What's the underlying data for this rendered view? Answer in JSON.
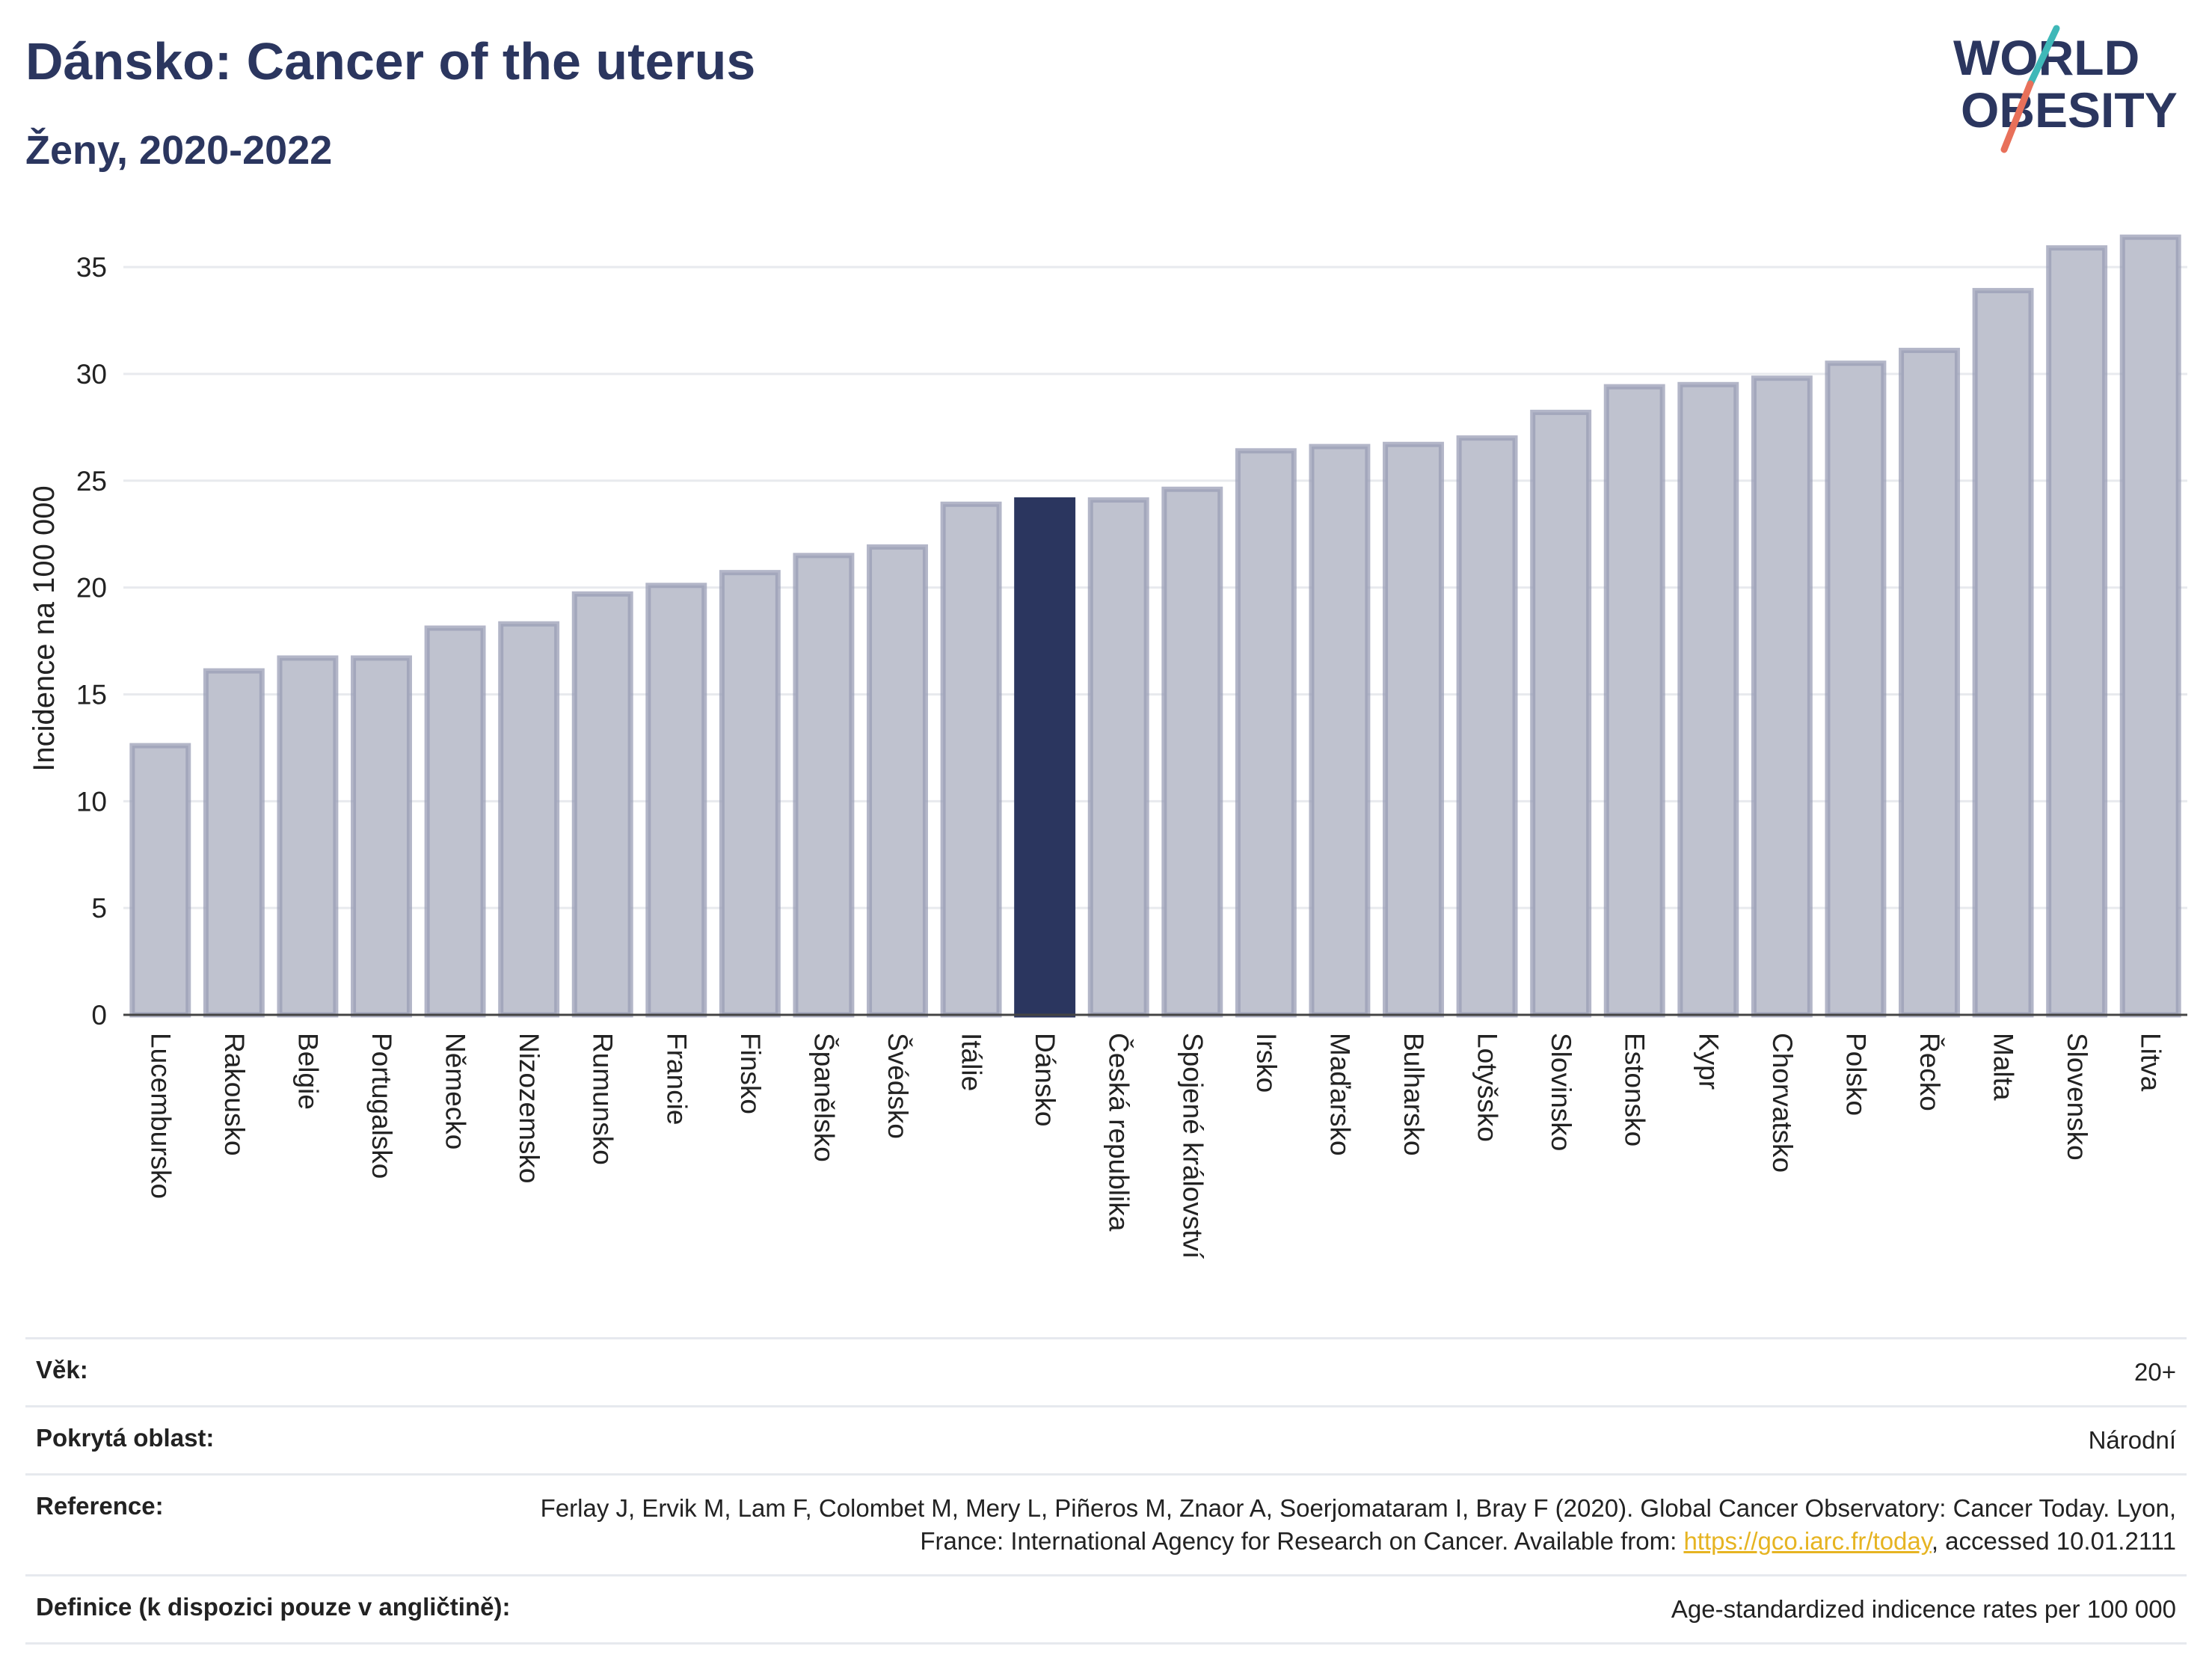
{
  "header": {
    "title": "Dánsko: Cancer of the uterus",
    "subtitle": "Ženy, 2020-2022"
  },
  "logo": {
    "line1": "WORLD",
    "line2": "OBESITY",
    "colors": {
      "text": "#2b365f",
      "slash_teal": "#3fb8b8",
      "slash_red": "#e8705a"
    }
  },
  "chart_data": {
    "type": "bar",
    "ylabel": "Incidence na 100 000",
    "ylim": [
      0,
      37
    ],
    "yticks": [
      0,
      5,
      10,
      15,
      20,
      25,
      30,
      35
    ],
    "grid": true,
    "highlight": "Dánsko",
    "colors": {
      "bar": "#bfc2cf",
      "bar_border": "#9a9db5",
      "highlight": "#2b365f"
    },
    "categories": [
      "Lucembursko",
      "Rakousko",
      "Belgie",
      "Portugalsko",
      "Německo",
      "Nizozemsko",
      "Rumunsko",
      "Francie",
      "Finsko",
      "Španělsko",
      "Švédsko",
      "Itálie",
      "Dánsko",
      "Česká republika",
      "Spojené království",
      "Irsko",
      "Maďarsko",
      "Bulharsko",
      "Lotyšsko",
      "Slovinsko",
      "Estonsko",
      "Kypr",
      "Chorvatsko",
      "Polsko",
      "Řecko",
      "Malta",
      "Slovensko",
      "Litva"
    ],
    "values": [
      12.6,
      16.1,
      16.7,
      16.7,
      18.1,
      18.3,
      19.7,
      20.1,
      20.7,
      21.5,
      21.9,
      23.9,
      24.1,
      24.1,
      24.6,
      26.4,
      26.6,
      26.7,
      27.0,
      28.2,
      29.4,
      29.5,
      29.8,
      30.5,
      31.1,
      33.9,
      35.9,
      36.4
    ]
  },
  "info": {
    "age_label": "Věk:",
    "age_value": "20+",
    "area_label": "Pokrytá oblast:",
    "area_value": "Národní",
    "ref_label": "Reference:",
    "ref_text_1": "Ferlay J, Ervik M, Lam F, Colombet M, Mery L, Piñeros M, Znaor A, Soerjomataram I, Bray F (2020). Global Cancer Observatory: Cancer Today. Lyon, France: International Agency for Research on Cancer. Available from: ",
    "ref_link": "https://gco.iarc.fr/today",
    "ref_text_2": ", accessed 10.01.2111",
    "def_label": "Definice (k dispozici pouze v angličtině):",
    "def_value": "Age-standardized indicence rates per 100 000"
  }
}
